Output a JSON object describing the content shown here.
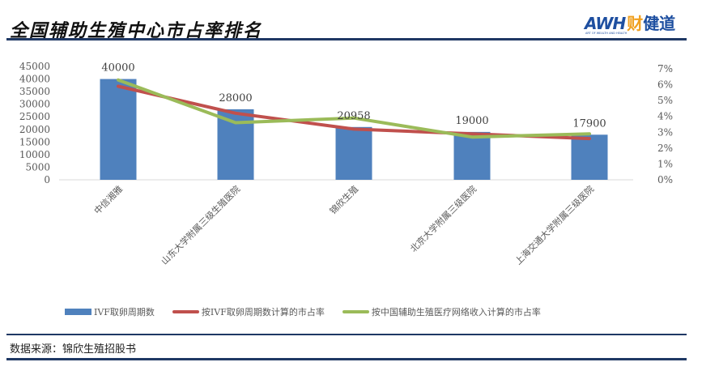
{
  "header": {
    "title": "全国辅助生殖中心市占率排名",
    "logo": {
      "brand": "AWH",
      "brand_sub": "ART OF WEALTH AND HEALTH",
      "name_accent": "财",
      "name_rest": "健道"
    }
  },
  "footer": {
    "source": "数据来源：锦欣生殖招股书"
  },
  "colors": {
    "bar": "#4f81bd",
    "line_red": "#c0504d",
    "line_green": "#9bbb59",
    "rule": "#1f3864"
  },
  "chart_data": {
    "type": "bar+line",
    "title": "全国辅助生殖中心市占率排名",
    "categories": [
      "中信湘雅",
      "山东大学附属三级生殖医院",
      "锦欣生殖",
      "北京大学附属三级医院",
      "上海交通大学附属三级医院"
    ],
    "series": [
      {
        "name": "IVF取卵周期数",
        "type": "bar",
        "axis": "left",
        "color": "#4f81bd",
        "values": [
          40000,
          28000,
          20958,
          19000,
          17900
        ],
        "data_labels": [
          "40000",
          "28000",
          "20958",
          "19000",
          "17900"
        ]
      },
      {
        "name": "按IVF取卵周期数计算的市占率",
        "type": "line",
        "axis": "right",
        "color": "#c0504d",
        "values": [
          0.059,
          0.042,
          0.032,
          0.029,
          0.026
        ]
      },
      {
        "name": "按中国辅助生殖医疗网络收入计算的市占率",
        "type": "line",
        "axis": "right",
        "color": "#9bbb59",
        "values": [
          0.063,
          0.036,
          0.039,
          0.027,
          0.029
        ]
      }
    ],
    "left_axis": {
      "min": 0,
      "max": 45000,
      "step": 5000,
      "ticks": [
        "0",
        "5000",
        "10000",
        "15000",
        "20000",
        "25000",
        "30000",
        "35000",
        "40000",
        "45000"
      ]
    },
    "right_axis": {
      "min": 0,
      "max": 0.07,
      "step": 0.01,
      "ticks": [
        "0%",
        "1%",
        "2%",
        "3%",
        "4%",
        "5%",
        "6%",
        "7%"
      ]
    },
    "xlabel": "",
    "ylabel": "",
    "grid": false,
    "legend_position": "bottom"
  }
}
